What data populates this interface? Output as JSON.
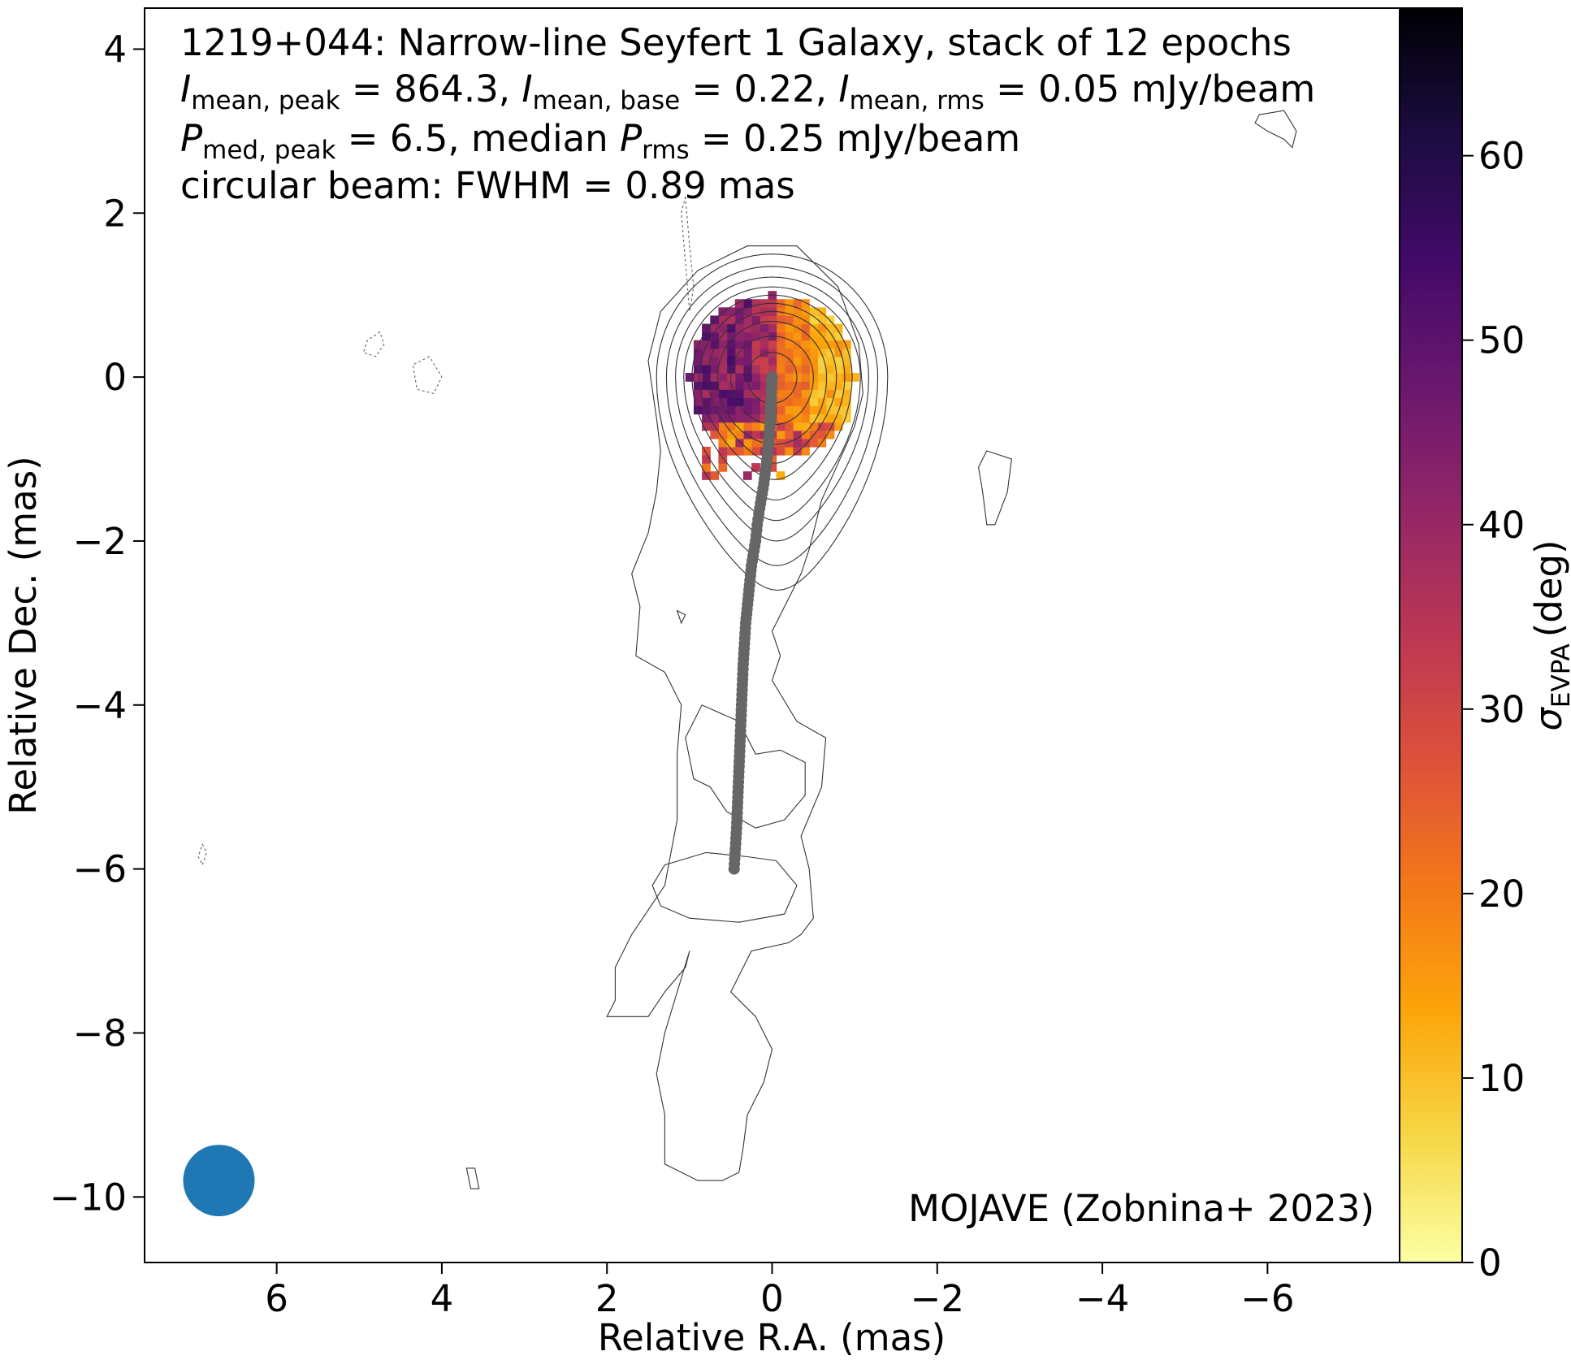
{
  "title": {
    "line1": "1219+044: Narrow-line Seyfert 1 Galaxy, stack of 12 epochs",
    "line2": {
      "sym": "I",
      "sub_peak": "mean, peak",
      "peak": "864.3",
      "sub_base": "mean, base",
      "base": "0.22",
      "sub_rms": "mean, rms",
      "rms": "0.05",
      "unit": "mJy/beam"
    },
    "line3": {
      "sym": "P",
      "sub_peak": "med, peak",
      "peak": "6.5",
      "median_text": "median",
      "sub_rms": "rms",
      "rms": "0.25",
      "unit": "mJy/beam"
    },
    "line4": "circular beam: FWHM = 0.89 mas"
  },
  "credit": "MOJAVE (Zobnina+ 2023)",
  "chart_data": {
    "type": "heatmap",
    "title": "1219+044: Narrow-line Seyfert 1 Galaxy, stack of 12 epochs",
    "xlabel": "Relative R.A. (mas)",
    "ylabel": "Relative Dec. (mas)",
    "xlim": [
      7.6,
      -7.6
    ],
    "ylim": [
      -10.8,
      4.5
    ],
    "xticks": [
      6,
      4,
      2,
      0,
      -2,
      -4,
      -6
    ],
    "yticks": [
      4,
      2,
      0,
      -2,
      -4,
      -6,
      -8,
      -10
    ],
    "colorbar": {
      "label": "σ",
      "label_sub": "EVPA",
      "label_unit": "(deg)",
      "cmap": "inferno_r",
      "range": [
        0,
        68
      ],
      "ticks": [
        0,
        10,
        20,
        30,
        40,
        50,
        60
      ]
    },
    "beam": {
      "fwhm_mas": 0.89,
      "x": 6.7,
      "y": -9.8,
      "color": "#1f77b4"
    },
    "polarization_map": {
      "center": [
        0.0,
        0.0
      ],
      "radius_mas": 1.0,
      "left_side_deg": 45,
      "right_side_deg": 20,
      "right_edge_deg": 12
    },
    "ridge_line": {
      "color": "#666666",
      "points": [
        [
          0.0,
          0.0
        ],
        [
          0.02,
          -0.5
        ],
        [
          0.05,
          -0.9
        ],
        [
          0.1,
          -1.3
        ],
        [
          0.15,
          -1.6
        ],
        [
          0.18,
          -1.8
        ],
        [
          0.2,
          -2.0
        ],
        [
          0.25,
          -2.3
        ],
        [
          0.28,
          -2.6
        ],
        [
          0.32,
          -3.0
        ],
        [
          0.35,
          -3.5
        ],
        [
          0.37,
          -4.0
        ],
        [
          0.39,
          -4.5
        ],
        [
          0.41,
          -5.0
        ],
        [
          0.43,
          -5.5
        ],
        [
          0.46,
          -6.0
        ]
      ]
    },
    "contours": [
      {
        "style": "dashed",
        "points": [
          [
            1.05,
            2.2
          ],
          [
            1.0,
            1.6
          ],
          [
            0.95,
            1.1
          ],
          [
            1.0,
            0.8
          ],
          [
            1.05,
            1.4
          ],
          [
            1.1,
            2.0
          ],
          [
            1.05,
            2.2
          ]
        ]
      },
      {
        "style": "dashed",
        "points": [
          [
            4.75,
            0.55
          ],
          [
            4.9,
            0.45
          ],
          [
            4.95,
            0.3
          ],
          [
            4.8,
            0.25
          ],
          [
            4.7,
            0.4
          ],
          [
            4.75,
            0.55
          ]
        ]
      },
      {
        "style": "dashed",
        "points": [
          [
            4.15,
            0.25
          ],
          [
            4.35,
            0.15
          ],
          [
            4.3,
            -0.15
          ],
          [
            4.1,
            -0.2
          ],
          [
            4.0,
            0.0
          ],
          [
            4.15,
            0.25
          ]
        ]
      },
      {
        "style": "dashed",
        "points": [
          [
            6.9,
            -5.7
          ],
          [
            6.85,
            -5.8
          ],
          [
            6.9,
            -5.95
          ],
          [
            6.95,
            -5.85
          ],
          [
            6.9,
            -5.7
          ]
        ]
      },
      {
        "style": "solid",
        "points": [
          [
            -2.6,
            -0.9
          ],
          [
            -2.9,
            -1.0
          ],
          [
            -2.85,
            -1.4
          ],
          [
            -2.7,
            -1.8
          ],
          [
            -2.6,
            -1.8
          ],
          [
            -2.55,
            -1.4
          ],
          [
            -2.5,
            -1.1
          ],
          [
            -2.6,
            -0.9
          ]
        ]
      },
      {
        "style": "solid",
        "points": [
          [
            -5.9,
            3.2
          ],
          [
            -6.2,
            3.25
          ],
          [
            -6.35,
            3.0
          ],
          [
            -6.3,
            2.8
          ],
          [
            -6.2,
            2.9
          ],
          [
            -6.0,
            3.0
          ],
          [
            -5.85,
            3.1
          ],
          [
            -5.9,
            3.2
          ]
        ]
      },
      {
        "style": "solid",
        "points": [
          [
            3.7,
            -9.65
          ],
          [
            3.65,
            -9.9
          ],
          [
            3.55,
            -9.9
          ],
          [
            3.6,
            -9.65
          ],
          [
            3.7,
            -9.65
          ]
        ]
      },
      {
        "style": "solid",
        "points": [
          [
            1.7,
            -2.4
          ],
          [
            1.6,
            -2.8
          ],
          [
            1.65,
            -3.4
          ],
          [
            1.3,
            -3.6
          ],
          [
            1.1,
            -4.0
          ],
          [
            1.15,
            -4.6
          ],
          [
            1.15,
            -5.4
          ],
          [
            1.3,
            -6.2
          ],
          [
            1.7,
            -6.8
          ],
          [
            1.9,
            -7.2
          ],
          [
            1.9,
            -7.6
          ],
          [
            2.0,
            -7.8
          ],
          [
            1.5,
            -7.8
          ],
          [
            1.3,
            -7.5
          ],
          [
            1.05,
            -7.2
          ],
          [
            1.0,
            -7.0
          ],
          [
            1.3,
            -8.0
          ],
          [
            1.4,
            -8.5
          ],
          [
            1.3,
            -9.0
          ],
          [
            1.3,
            -9.6
          ],
          [
            0.9,
            -9.8
          ],
          [
            0.6,
            -9.8
          ],
          [
            0.4,
            -9.7
          ],
          [
            0.35,
            -9.4
          ],
          [
            0.3,
            -9.0
          ],
          [
            0.1,
            -8.6
          ],
          [
            0.0,
            -8.2
          ],
          [
            0.2,
            -7.8
          ],
          [
            0.5,
            -7.5
          ],
          [
            0.25,
            -7.0
          ],
          [
            -0.2,
            -6.9
          ],
          [
            -0.35,
            -6.8
          ],
          [
            -0.5,
            -6.6
          ],
          [
            -0.45,
            -6.0
          ],
          [
            -0.35,
            -5.6
          ],
          [
            -0.6,
            -5.0
          ],
          [
            -0.65,
            -4.4
          ],
          [
            -0.3,
            -4.2
          ],
          [
            0.0,
            -3.7
          ],
          [
            -0.1,
            -3.4
          ],
          [
            0.0,
            -3.1
          ],
          [
            -0.35,
            -2.4
          ],
          [
            -0.45,
            -2.1
          ],
          [
            -0.6,
            -1.5
          ],
          [
            -1.0,
            -0.6
          ],
          [
            -1.1,
            -0.2
          ],
          [
            -1.05,
            0.4
          ],
          [
            -0.8,
            1.1
          ],
          [
            -0.3,
            1.6
          ],
          [
            0.3,
            1.6
          ],
          [
            0.9,
            1.3
          ],
          [
            1.35,
            0.8
          ],
          [
            1.5,
            0.2
          ],
          [
            1.4,
            -0.5
          ],
          [
            1.35,
            -0.9
          ],
          [
            1.4,
            -1.4
          ],
          [
            1.5,
            -1.9
          ],
          [
            1.7,
            -2.4
          ]
        ]
      },
      {
        "style": "solid",
        "points": [
          [
            0.2,
            -4.6
          ],
          [
            0.4,
            -4.2
          ],
          [
            0.85,
            -4.0
          ],
          [
            1.05,
            -4.4
          ],
          [
            0.95,
            -4.9
          ],
          [
            0.75,
            -5.0
          ],
          [
            0.55,
            -5.3
          ],
          [
            0.2,
            -5.5
          ],
          [
            -0.15,
            -5.4
          ],
          [
            -0.4,
            -5.1
          ],
          [
            -0.4,
            -4.7
          ],
          [
            -0.1,
            -4.55
          ],
          [
            0.2,
            -4.6
          ]
        ]
      },
      {
        "style": "solid",
        "points": [
          [
            1.3,
            -5.95
          ],
          [
            0.8,
            -5.8
          ],
          [
            0.3,
            -5.85
          ],
          [
            -0.05,
            -5.9
          ],
          [
            -0.3,
            -6.2
          ],
          [
            -0.15,
            -6.55
          ],
          [
            0.4,
            -6.65
          ],
          [
            1.0,
            -6.6
          ],
          [
            1.35,
            -6.45
          ],
          [
            1.45,
            -6.2
          ],
          [
            1.3,
            -5.95
          ]
        ]
      },
      {
        "style": "solid",
        "points": [
          [
            1.15,
            -2.85
          ],
          [
            1.1,
            -3.0
          ],
          [
            1.05,
            -2.9
          ],
          [
            1.15,
            -2.85
          ]
        ]
      }
    ],
    "nested_contours": {
      "center": [
        0.0,
        0.0
      ],
      "levels": [
        {
          "a": 1.4,
          "b_up": 1.5,
          "b_down": 2.6,
          "tail": 0.5
        },
        {
          "a": 1.28,
          "b_up": 1.35,
          "b_down": 2.3,
          "tail": 0.45
        },
        {
          "a": 1.17,
          "b_up": 1.22,
          "b_down": 2.0,
          "tail": 0.42
        },
        {
          "a": 1.07,
          "b_up": 1.1,
          "b_down": 1.75,
          "tail": 0.38
        },
        {
          "a": 0.97,
          "b_up": 1.0,
          "b_down": 1.5,
          "tail": 0.34
        },
        {
          "a": 0.88,
          "b_up": 0.9,
          "b_down": 1.25,
          "tail": 0.3
        },
        {
          "a": 0.78,
          "b_up": 0.8,
          "b_down": 1.05,
          "tail": 0.26
        },
        {
          "a": 0.66,
          "b_up": 0.68,
          "b_down": 0.82,
          "tail": 0.2
        },
        {
          "a": 0.5,
          "b_up": 0.5,
          "b_down": 0.58,
          "tail": 0.1
        },
        {
          "a": 0.3,
          "b_up": 0.3,
          "b_down": 0.32,
          "tail": 0.0
        }
      ]
    }
  }
}
